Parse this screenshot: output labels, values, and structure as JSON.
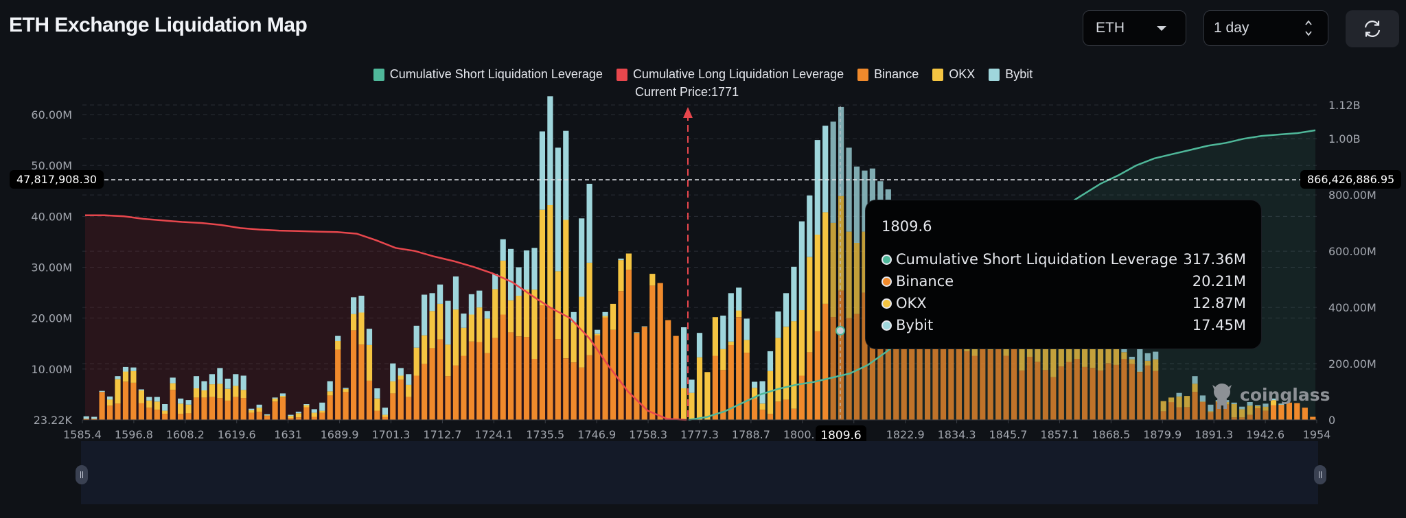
{
  "header": {
    "title": "ETH Exchange Liquidation Map",
    "coin_select": "ETH",
    "range_select": "1 day",
    "refresh_icon": "refresh-icon"
  },
  "colors": {
    "short_cum": "#4fb89a",
    "long_cum": "#e8474d",
    "binance": "#f08a2c",
    "okx": "#f5c542",
    "bybit": "#9fd6dc",
    "background": "#0f1217"
  },
  "legend": {
    "short": "Cumulative Short Liquidation Leverage",
    "long": "Cumulative Long Liquidation Leverage",
    "binance": "Binance",
    "okx": "OKX",
    "bybit": "Bybit",
    "current_price": "Current Price:1771"
  },
  "crosshair": {
    "left_value": "47,817,908.30",
    "right_value": "866,426,886.95",
    "x_value": "1809.6"
  },
  "tooltip": {
    "title": "1809.6",
    "rows": [
      {
        "label": "Cumulative Short Liquidation Leverage",
        "value": "317.36M",
        "color": "#4fb89a"
      },
      {
        "label": "Binance",
        "value": "20.21M",
        "color": "#f08a2c"
      },
      {
        "label": "OKX",
        "value": "12.87M",
        "color": "#f5c542"
      },
      {
        "label": "Bybit",
        "value": "17.45M",
        "color": "#9fd6dc"
      }
    ]
  },
  "watermark": "coinglass",
  "chart_data": {
    "type": "bar",
    "title": "ETH Exchange Liquidation Map",
    "stacked": true,
    "current_price": 1771,
    "left_axis": {
      "ticks": [
        "23.22K",
        "10.00M",
        "20.00M",
        "30.00M",
        "40.00M",
        "50.00M",
        "60.00M"
      ],
      "min": 0.02322,
      "max": 60,
      "unit": "M"
    },
    "right_axis": {
      "ticks": [
        "0",
        "200.00M",
        "400.00M",
        "600.00M",
        "800.00M",
        "1.00B",
        "1.12B"
      ],
      "min": 0,
      "max": 1120,
      "unit": "M"
    },
    "x_tick_labels": [
      "1585.4",
      "1596.8",
      "1608.2",
      "1619.6",
      "1631",
      "1689.9",
      "1701.3",
      "1712.7",
      "1724.1",
      "1735.5",
      "1746.9",
      "1758.3",
      "1777.3",
      "1788.7",
      "1800.1",
      "1809.6",
      "1822.9",
      "1834.3",
      "1845.7",
      "1857.1",
      "1868.5",
      "1879.9",
      "1891.3",
      "1942.6",
      "1954"
    ],
    "legend_position": "top-center",
    "grid": true,
    "series": [
      {
        "name": "Binance",
        "values": [
          0.2,
          0.2,
          5.5,
          2.8,
          3.2,
          7.5,
          7.3,
          3.3,
          2.4,
          2.0,
          1.2,
          5.9,
          1.2,
          1.3,
          4.4,
          4.4,
          4.5,
          4.3,
          3.8,
          4.5,
          4.3,
          1.4,
          1.6,
          0.8,
          3.6,
          4.4,
          0.4,
          0.5,
          2.5,
          0.6,
          1.4,
          4.8,
          13.8,
          5.5,
          17.6,
          14.8,
          7.7,
          1.8,
          0.6,
          5.2,
          7.9,
          4.5,
          8.7,
          11.0,
          14.1,
          15.8,
          8.6,
          10.7,
          12.6,
          15.4,
          15.3,
          13.1,
          16.1,
          20.7,
          17.2,
          16.4,
          16.3,
          12.0,
          22.5,
          22.1,
          15.9,
          12.1,
          11.3,
          10.3,
          12.7,
          16.6,
          20.1,
          17.7,
          25.3,
          29.5,
          17.0,
          18.3,
          26.4,
          26.9,
          19.6,
          16.5,
          0,
          0,
          0,
          0,
          12.6,
          9.8,
          14.7,
          20.2,
          13.2,
          4.2,
          2.0,
          1.2,
          3.6,
          4.0,
          2.2,
          8.7,
          13.3,
          17.4,
          22.8,
          20.21,
          25.4,
          20.0,
          20.8,
          25.0,
          25.4,
          24.0,
          22.8,
          21.5,
          20.8,
          16.5,
          15.2,
          15.0,
          16.5,
          16.0,
          14.8,
          15.5,
          13.5,
          12.6,
          16.5,
          13.8,
          14.2,
          12.6,
          15.0,
          9.7,
          12.4,
          11.4,
          9.8,
          8.4,
          10.5,
          11.4,
          12.0,
          10.4,
          10.2,
          9.7,
          11.1,
          10.8,
          12.0,
          11.0,
          9.4,
          10.7,
          9.6,
          1.7,
          3.5,
          2.5,
          2.5,
          5.5,
          3.5,
          1.5,
          3.5,
          3.0,
          0.5,
          0.5,
          1.0,
          2.3,
          1.8,
          2.9,
          3.0,
          3.4,
          3.3,
          2.4,
          0.6
        ]
      },
      {
        "name": "OKX",
        "values": [
          0,
          0,
          0,
          1.2,
          4.8,
          2.0,
          2.3,
          2.5,
          1.4,
          1.6,
          0.6,
          1.3,
          2.0,
          1.7,
          1.8,
          1.4,
          2.5,
          2.8,
          2.3,
          2.2,
          1.6,
          0.5,
          0.8,
          0.1,
          0.6,
          0.3,
          0.4,
          0.8,
          0.4,
          0.8,
          0.4,
          0.8,
          1.7,
          0.6,
          3.2,
          6.3,
          7.0,
          2.4,
          0.4,
          2.4,
          0.8,
          2.4,
          5.5,
          5.6,
          7.3,
          7.0,
          6.2,
          11.0,
          5.5,
          5.3,
          6.8,
          6.8,
          9.6,
          10.6,
          6.3,
          8.0,
          9.3,
          13.6,
          18.8,
          20.1,
          13.3,
          27.2,
          7.9,
          13.9,
          18.2,
          0.3,
          0.3,
          5.1,
          6.1,
          3.2,
          0.1,
          0,
          2.3,
          0,
          0,
          0,
          6.2,
          5.3,
          12.3,
          9.4,
          7.6,
          4.1,
          0.7,
          1.3,
          2.5,
          2.1,
          1.2,
          8.4,
          12.5,
          14.3,
          17.2,
          12.87,
          18.7,
          19.0,
          18.0,
          18.5,
          18.6,
          17.0,
          14.0,
          12.0,
          13.0,
          12.4,
          13.5,
          11.6,
          10.5,
          11.5,
          6.8,
          8.2,
          7.5,
          10.6,
          12.0,
          14.2,
          11.2,
          11.0,
          9.6,
          9.7,
          6.1,
          6.5,
          8.0,
          9.8,
          11.3,
          8.7,
          6.3,
          11.5,
          14.2,
          8.6,
          7.2,
          5.7,
          6.5,
          6.0,
          5.6,
          7.0,
          1.3,
          0.9,
          0.1,
          0.9,
          2.3,
          2.0,
          0.9,
          2.1,
          2.2,
          1.6,
          0.1,
          0.2,
          0.2,
          0.5,
          2.6,
          1.6,
          1.8,
          0.4,
          0.8,
          1.0,
          0
        ]
      },
      {
        "name": "Bybit",
        "values": [
          0.5,
          0.4,
          0.2,
          0.6,
          0.6,
          0.9,
          0.7,
          0.2,
          0.7,
          0.9,
          1.3,
          1.1,
          1.0,
          0.9,
          2.4,
          1.8,
          2.0,
          3.1,
          2.0,
          2.3,
          2.8,
          0.3,
          0.6,
          0.2,
          0.2,
          0.5,
          0.2,
          0.3,
          0.2,
          0.7,
          1.6,
          2.0,
          1.0,
          0.2,
          3.3,
          3.3,
          3.2,
          2.0,
          1.4,
          3.5,
          1.5,
          2.1,
          4.3,
          8.0,
          3.5,
          3.8,
          8.6,
          6.5,
          2.8,
          4.0,
          3.3,
          1.5,
          3.0,
          4.2,
          10.1,
          5.6,
          7.7,
          8.2,
          15.4,
          21.4,
          24.3,
          17.5,
          2.0,
          15.4,
          15.5,
          0.8,
          0.8,
          0,
          0.3,
          0,
          0.1,
          0.1,
          0,
          0,
          0,
          0,
          12.0,
          2.6,
          4.8,
          0,
          0,
          6.6,
          9.5,
          4.5,
          4.2,
          1.2,
          4.4,
          3.9,
          5.2,
          6.6,
          10.7,
          17.45,
          12.1,
          18.6,
          17.0,
          19.9,
          17.5,
          16.5,
          15.0,
          12.0,
          11.0,
          10.5,
          9.0,
          9.0,
          9.0,
          6.8,
          9.8,
          6.3,
          4.5,
          3.8,
          3.5,
          3.0,
          3.0,
          2.9,
          5.0,
          2.6,
          4.2,
          5.7,
          5.5,
          4.0,
          3.0,
          4.6,
          7.5,
          8.0,
          5.6,
          6.6,
          3.0,
          5.3,
          6.0,
          3.0,
          3.0,
          5.8,
          3.2,
          0.5,
          4.5,
          1.5,
          1.5,
          0,
          0,
          0.7,
          0,
          1.5,
          1.2,
          1.3,
          0.2,
          0.4,
          0.3,
          0.5,
          0.7,
          0.2,
          0.6,
          0.3,
          0.2,
          0
        ]
      }
    ],
    "cumulative_long_M": [
      40.2,
      40.2,
      40.0,
      39.5,
      39.2,
      38.9,
      38.7,
      38.3,
      37.7,
      37.4,
      37.2,
      37.1,
      37.0,
      36.9,
      36.6,
      35.3,
      33.8,
      33.2,
      32.1,
      31.2,
      30.1,
      28.8,
      27.1,
      24.5,
      22.0,
      20.0,
      16.0,
      10.5,
      5.5,
      1.8,
      0.2,
      0.0
    ],
    "cumulative_short_M": [
      0,
      10,
      30,
      60,
      90,
      110,
      125,
      135,
      150,
      165,
      195,
      240,
      290,
      317.36,
      370,
      430,
      520,
      590,
      640,
      690,
      720,
      760,
      800,
      840,
      870,
      905,
      930,
      945,
      960,
      975,
      985,
      1000,
      1010,
      1015,
      1020,
      1030
    ]
  }
}
